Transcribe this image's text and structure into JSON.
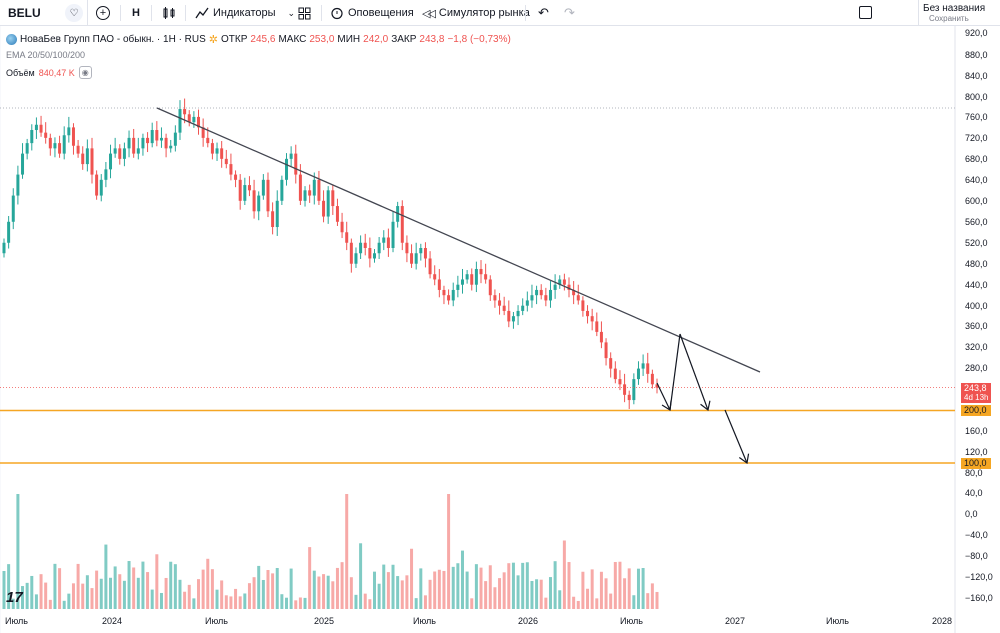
{
  "toolbar": {
    "symbol": "BELU",
    "interval": "H",
    "indicators": "Индикаторы",
    "alerts": "Оповещения",
    "replay": "Симулятор рынка",
    "layout_title": "Без названия",
    "layout_status": "Сохранить"
  },
  "legend": {
    "title": "НоваБев Групп ПАО - обыкн. · 1H · RUS",
    "open_label": "ОТКР",
    "open": "245,6",
    "high_label": "МАКС",
    "high": "253,0",
    "low_label": "МИН",
    "low": "242,0",
    "close_label": "ЗАКР",
    "close": "243,8",
    "change": "−1,8 (−0,73%)",
    "ema": "EMA 20/50/100/200",
    "volume_label": "Объём",
    "volume": "840,47 K"
  },
  "price_tags": {
    "last": "243,8",
    "countdown": "4d 13h",
    "level1": "200,0",
    "level2": "100,0"
  },
  "colors": {
    "up": "#26a69a",
    "down": "#ef5350",
    "vol_up": "#80cbc4",
    "vol_down": "#f7a9a7",
    "level": "#f5a623",
    "last_price": "#ef5350"
  },
  "price_axis": [
    "920,0",
    "880,0",
    "840,0",
    "800,0",
    "760,0",
    "720,0",
    "680,0",
    "640,0",
    "600,0",
    "560,0",
    "520,0",
    "480,0",
    "440,0",
    "400,0",
    "360,0",
    "320,0",
    "280,0",
    "160,0",
    "120,0",
    "80,0",
    "40,0",
    "0,0",
    "−40,0",
    "−80,0",
    "−120,0",
    "−160,0"
  ],
  "time_axis": [
    "Июль",
    "2024",
    "Июль",
    "2025",
    "Июль",
    "2026",
    "Июль",
    "2027",
    "Июль",
    "2028"
  ],
  "chart_data": {
    "type": "candlestick",
    "price_range": [
      100,
      920
    ],
    "horizontal_levels": [
      200,
      100
    ],
    "last_price": 243.8,
    "series": [
      {
        "close": [
          520,
          560,
          610,
          650,
          690,
          710,
          735,
          745,
          730,
          720,
          700,
          710,
          690,
          725,
          740,
          705,
          690,
          670,
          700,
          650,
          610,
          640,
          660,
          690,
          700,
          680,
          700,
          720,
          690,
          700,
          720,
          710,
          735,
          715,
          720,
          700,
          705,
          730,
          775,
          765,
          750,
          760,
          740,
          720,
          710,
          690,
          700,
          680,
          670,
          650,
          640,
          600,
          630,
          620,
          580,
          610,
          640,
          580,
          550,
          600,
          640,
          680,
          690,
          650,
          600,
          620,
          610,
          640,
          600,
          570,
          620,
          590,
          560,
          540,
          520,
          480,
          500,
          520,
          510,
          490,
          500,
          520,
          530,
          510,
          560,
          590,
          520,
          500,
          480,
          500,
          510,
          490,
          460,
          450,
          430,
          420,
          410,
          430,
          440,
          450,
          460,
          440,
          470,
          460,
          450,
          420,
          410,
          400,
          390,
          370,
          380,
          390,
          400,
          410,
          420,
          430,
          420,
          410,
          430,
          440,
          450,
          440,
          430,
          420,
          410,
          390,
          380,
          370,
          350,
          330,
          300,
          280,
          260,
          250,
          230,
          220,
          260,
          280,
          290,
          270,
          250,
          243.8
        ]
      }
    ]
  }
}
